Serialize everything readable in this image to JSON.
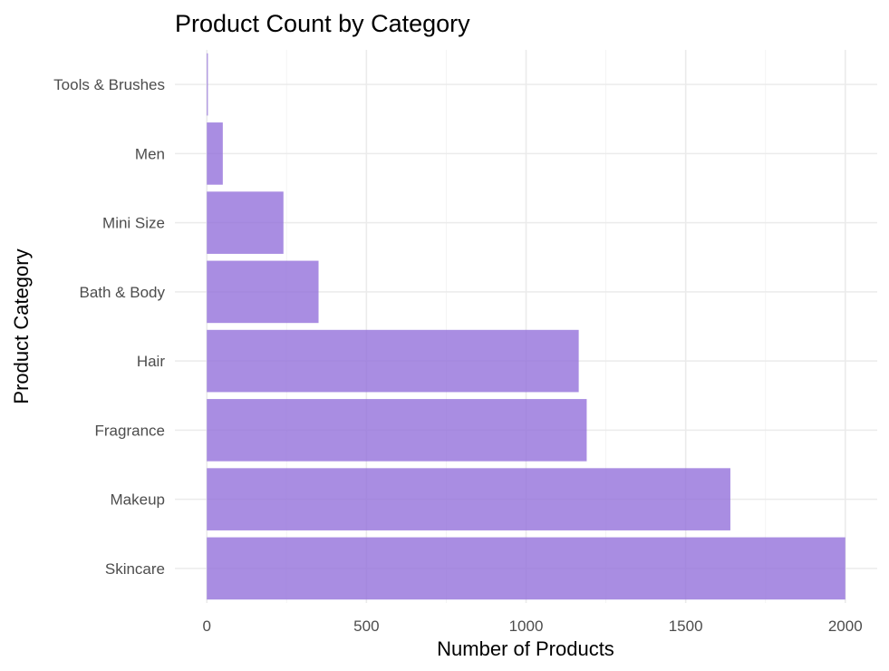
{
  "chart_data": {
    "type": "bar",
    "orientation": "horizontal",
    "title": "Product Count by Category",
    "xlabel": "Number of Products",
    "ylabel": "Product Category",
    "categories": [
      "Skincare",
      "Makeup",
      "Fragrance",
      "Hair",
      "Bath & Body",
      "Mini Size",
      "Men",
      "Tools & Brushes"
    ],
    "values": [
      2000,
      1640,
      1190,
      1165,
      350,
      240,
      50,
      3
    ],
    "xlim": [
      -100,
      2100
    ],
    "xticks": [
      0,
      500,
      1000,
      1500,
      2000
    ],
    "xtick_labels": [
      "0",
      "500",
      "1000",
      "1500",
      "2000"
    ],
    "grid": true,
    "legend": "none",
    "bar_color": "#9370DB"
  }
}
